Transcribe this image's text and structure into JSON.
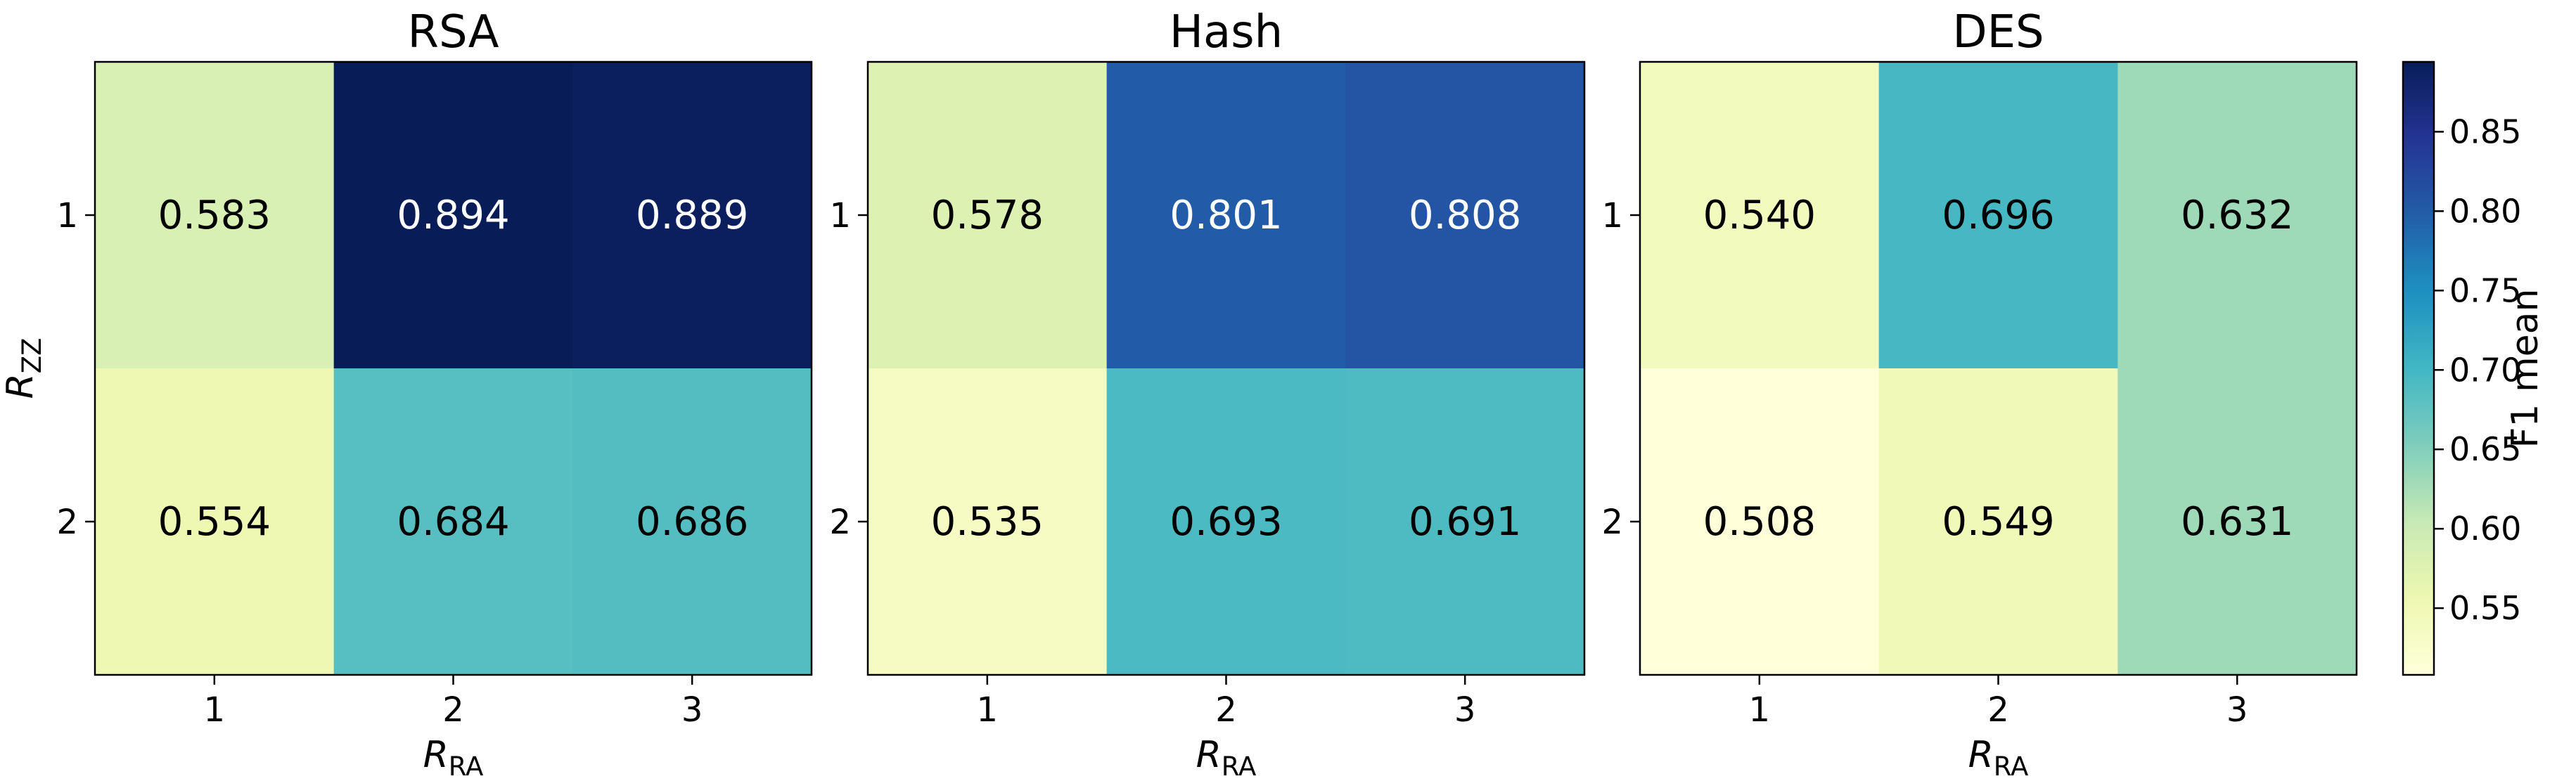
{
  "chart_data": [
    {
      "type": "heatmap",
      "title": "RSA",
      "x_tick_labels": [
        "1",
        "2",
        "3"
      ],
      "y_tick_labels": [
        "1",
        "2"
      ],
      "xlabel_main": "R",
      "xlabel_sub": "RA",
      "ylabel_main": "R",
      "ylabel_sub": "ZZ",
      "values": [
        [
          0.583,
          0.894,
          0.889
        ],
        [
          0.554,
          0.684,
          0.686
        ]
      ],
      "annotations": [
        [
          "0.583",
          "0.894",
          "0.889"
        ],
        [
          "0.554",
          "0.684",
          "0.686"
        ]
      ]
    },
    {
      "type": "heatmap",
      "title": "Hash",
      "x_tick_labels": [
        "1",
        "2",
        "3"
      ],
      "y_tick_labels": [
        "1",
        "2"
      ],
      "xlabel_main": "R",
      "xlabel_sub": "RA",
      "values": [
        [
          0.578,
          0.801,
          0.808
        ],
        [
          0.535,
          0.693,
          0.691
        ]
      ],
      "annotations": [
        [
          "0.578",
          "0.801",
          "0.808"
        ],
        [
          "0.535",
          "0.693",
          "0.691"
        ]
      ]
    },
    {
      "type": "heatmap",
      "title": "DES",
      "x_tick_labels": [
        "1",
        "2",
        "3"
      ],
      "y_tick_labels": [
        "1",
        "2"
      ],
      "xlabel_main": "R",
      "xlabel_sub": "RA",
      "values": [
        [
          0.54,
          0.696,
          0.632
        ],
        [
          0.508,
          0.549,
          0.631
        ]
      ],
      "annotations": [
        [
          "0.540",
          "0.696",
          "0.632"
        ],
        [
          "0.508",
          "0.549",
          "0.631"
        ]
      ]
    }
  ],
  "colorbar": {
    "label": "F1 mean",
    "colormap": "YlGnBu",
    "vmin": 0.508,
    "vmax": 0.894,
    "ticks": [
      0.55,
      0.6,
      0.65,
      0.7,
      0.75,
      0.8,
      0.85
    ],
    "tick_labels": [
      "0.55",
      "0.60",
      "0.65",
      "0.70",
      "0.75",
      "0.80",
      "0.85"
    ]
  },
  "colors": {
    "light_text": "#ffffff",
    "dark_text": "#000000",
    "axis": "#000000"
  }
}
